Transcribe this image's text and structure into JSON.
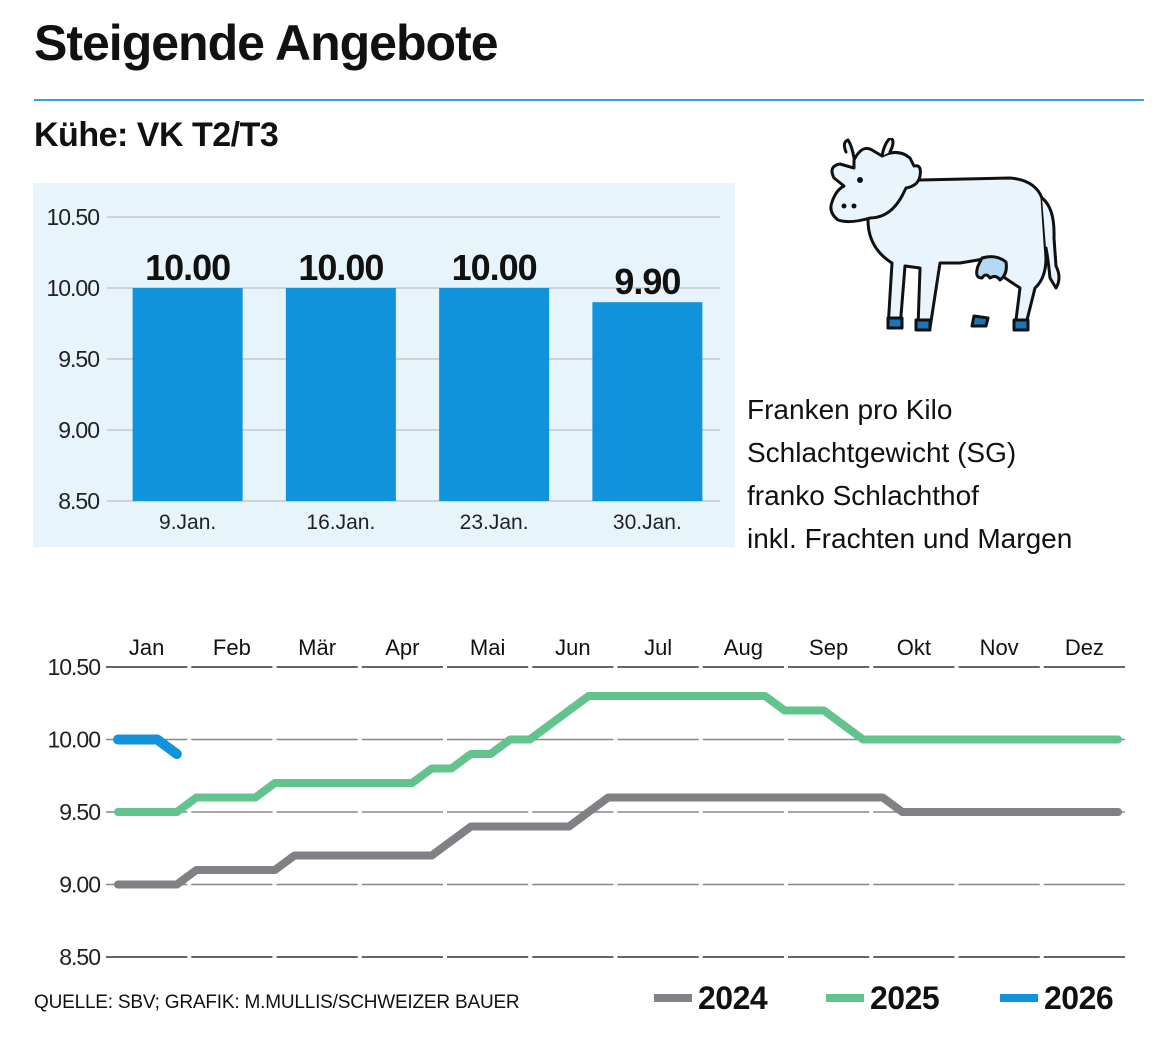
{
  "header": {
    "title": "Steigende Angebote",
    "subtitle": "Kühe: VK T2/T3"
  },
  "description": {
    "lines": [
      "Franken pro Kilo",
      "Schlachtgewicht (SG)",
      "franko Schlachthof",
      "inkl. Frachten und Margen"
    ]
  },
  "illustration": {
    "icon": "cow-icon"
  },
  "footer": {
    "source": "QUELLE: SBV; GRAFIK: M.MULLIS/SCHWEIZER BAUER"
  },
  "colors": {
    "accent_rule": "#3a9fd6",
    "bar": "#1193db",
    "bar_panel_bg": "#e8f4fc",
    "series_2024": "#808085",
    "series_2025": "#63c38c",
    "series_2026": "#1193db"
  },
  "chart_data": [
    {
      "type": "bar",
      "title": "Kühe: VK T2/T3",
      "categories": [
        "9.Jan.",
        "16.Jan.",
        "23.Jan.",
        "30.Jan."
      ],
      "values": [
        10.0,
        10.0,
        10.0,
        9.9
      ],
      "value_labels": [
        "10.00",
        "10.00",
        "10.00",
        "9.90"
      ],
      "xlabel": "",
      "ylabel": "Franken pro Kilo SG",
      "ylim": [
        8.5,
        10.5
      ],
      "yticks": [
        "8.50",
        "9.00",
        "9.50",
        "10.00",
        "10.50"
      ],
      "grid": true
    },
    {
      "type": "line",
      "title": "",
      "x_unit": "week",
      "categories": [
        "Jan",
        "Feb",
        "Mär",
        "Apr",
        "Mai",
        "Jun",
        "Jul",
        "Aug",
        "Sep",
        "Okt",
        "Nov",
        "Dez"
      ],
      "ylim": [
        8.5,
        10.5
      ],
      "yticks": [
        "8.50",
        "9.00",
        "9.50",
        "10.00",
        "10.50"
      ],
      "grid": true,
      "legend_position": "bottom-right",
      "series": [
        {
          "name": "2024",
          "values": [
            9.0,
            9.0,
            9.0,
            9.0,
            9.1,
            9.1,
            9.1,
            9.1,
            9.1,
            9.2,
            9.2,
            9.2,
            9.2,
            9.2,
            9.2,
            9.2,
            9.2,
            9.3,
            9.4,
            9.4,
            9.4,
            9.4,
            9.4,
            9.4,
            9.5,
            9.6,
            9.6,
            9.6,
            9.6,
            9.6,
            9.6,
            9.6,
            9.6,
            9.6,
            9.6,
            9.6,
            9.6,
            9.6,
            9.6,
            9.6,
            9.5,
            9.5,
            9.5,
            9.5,
            9.5,
            9.5,
            9.5,
            9.5,
            9.5,
            9.5,
            9.5,
            9.5
          ]
        },
        {
          "name": "2025",
          "values": [
            9.5,
            9.5,
            9.5,
            9.5,
            9.6,
            9.6,
            9.6,
            9.6,
            9.7,
            9.7,
            9.7,
            9.7,
            9.7,
            9.7,
            9.7,
            9.7,
            9.8,
            9.8,
            9.9,
            9.9,
            10.0,
            10.0,
            10.1,
            10.2,
            10.3,
            10.3,
            10.3,
            10.3,
            10.3,
            10.3,
            10.3,
            10.3,
            10.3,
            10.3,
            10.2,
            10.2,
            10.2,
            10.1,
            10.0,
            10.0,
            10.0,
            10.0,
            10.0,
            10.0,
            10.0,
            10.0,
            10.0,
            10.0,
            10.0,
            10.0,
            10.0,
            10.0
          ]
        },
        {
          "name": "2026",
          "values": [
            10.0,
            10.0,
            10.0,
            9.9
          ]
        }
      ]
    }
  ]
}
